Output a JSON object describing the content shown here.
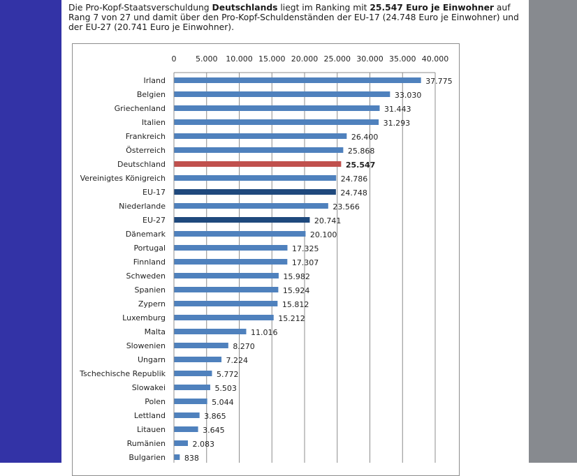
{
  "intro": {
    "part1": "Die Pro-Kopf-Staatsverschuldung ",
    "bold1": "Deutschlands",
    "part2": " liegt im Ranking mit ",
    "bold2": "25.547 Euro je Einwohner",
    "part3": " auf Rang 7 von 27 und damit über den Pro-Kopf-Schuldenständen der EU-17 (24.748 Euro je Einwohner) und der EU-27 (20.741 Euro je Einwohner)."
  },
  "colors": {
    "left_band": "#3333a6",
    "right_band": "#878a8f",
    "bar_default": "#4f81bd",
    "bar_germany": "#c0504d",
    "bar_eu": "#1f497d",
    "grid": "#8c8c8c"
  },
  "chart_data": {
    "type": "bar",
    "orientation": "horizontal",
    "title": "",
    "xlabel": "",
    "ylabel": "",
    "xlim": [
      0,
      40000
    ],
    "ticks": [
      "0",
      "5.000",
      "10.000",
      "15.000",
      "20.000",
      "25.000",
      "30.000",
      "35.000",
      "40.000"
    ],
    "tick_values": [
      0,
      5000,
      10000,
      15000,
      20000,
      25000,
      30000,
      35000,
      40000
    ],
    "axis_position": "top",
    "grid": true,
    "categories": [
      "Irland",
      "Belgien",
      "Griechenland",
      "Italien",
      "Frankreich",
      "Österreich",
      "Deutschland",
      "Vereinigtes Königreich",
      "EU-17",
      "Niederlande",
      "EU-27",
      "Dänemark",
      "Portugal",
      "Finnland",
      "Schweden",
      "Spanien",
      "Zypern",
      "Luxemburg",
      "Malta",
      "Slowenien",
      "Ungarn",
      "Tschechische Republik",
      "Slowakei",
      "Polen",
      "Lettland",
      "Litauen",
      "Rumänien",
      "Bulgarien"
    ],
    "values": [
      37775,
      33030,
      31443,
      31293,
      26400,
      25868,
      25547,
      24786,
      24748,
      23566,
      20741,
      20100,
      17325,
      17307,
      15982,
      15924,
      15812,
      15212,
      11016,
      8270,
      7224,
      5772,
      5503,
      5044,
      3865,
      3645,
      2083,
      838
    ],
    "value_labels": [
      "37.775",
      "33.030",
      "31.443",
      "31.293",
      "26.400",
      "25.868",
      "25.547",
      "24.786",
      "24.748",
      "23.566",
      "20.741",
      "20.100",
      "17.325",
      "17.307",
      "15.982",
      "15.924",
      "15.812",
      "15.212",
      "11.016",
      "8.270",
      "7.224",
      "5.772",
      "5.503",
      "5.044",
      "3.865",
      "3.645",
      "2.083",
      "838"
    ],
    "highlight": {
      "Deutschland": "germany",
      "EU-17": "eu",
      "EU-27": "eu"
    }
  }
}
